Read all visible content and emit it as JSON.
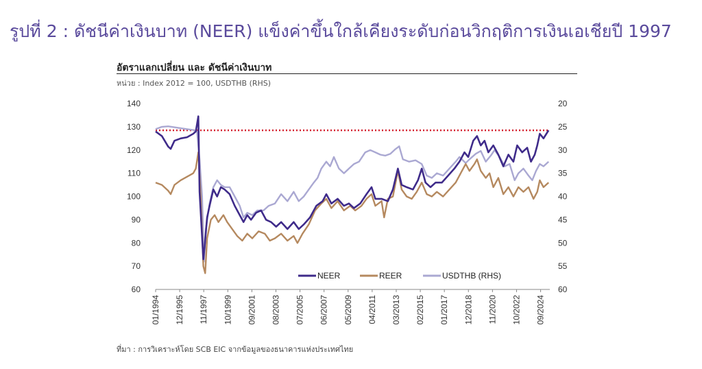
{
  "page": {
    "title": "รูปที่ 2 : ดัชนีค่าเงินบาท (NEER) แข็งค่าขึ้นใกล้เคียงระดับก่อนวิกฤติการเงินเอเชียปี 1997"
  },
  "chart": {
    "title": "อัตราแลกเปลี่ยน และ ดัชนีค่าเงินบาท",
    "unit": "หน่วย : Index 2012 = 100, USDTHB (RHS)",
    "source": "ที่มา : การวิเคราะห์โดย SCB EIC จากข้อมูลของธนาคารแห่งประเทศไทย"
  },
  "colors": {
    "neer": "#3f2b8a",
    "reer": "#b5895f",
    "usdthb": "#aaa8d2",
    "reference": "#d4202f"
  },
  "chart_data": {
    "type": "line",
    "x_ticks": [
      "01/1994",
      "12/1995",
      "11/1997",
      "10/1999",
      "09/2001",
      "08/2003",
      "07/2005",
      "06/2007",
      "05/2009",
      "04/2011",
      "03/2013",
      "02/2015",
      "01/2017",
      "12/2018",
      "11/2020",
      "10/2022",
      "09/2024"
    ],
    "ylim": [
      60,
      140
    ],
    "y_ticks": [
      140,
      130,
      120,
      110,
      100,
      90,
      80,
      70,
      60
    ],
    "y2lim": [
      20,
      60
    ],
    "y2_ticks": [
      20,
      25,
      30,
      35,
      40,
      45,
      50,
      55,
      60
    ],
    "y2_inverted": true,
    "reference_line": 128.5,
    "legend_position": "bottom-center",
    "series": [
      {
        "name": "NEER",
        "color_key": "neer",
        "axis": "left",
        "points": [
          [
            1994.0,
            128.0
          ],
          [
            1994.5,
            126.0
          ],
          [
            1995.0,
            121.5
          ],
          [
            1995.2,
            120.5
          ],
          [
            1995.5,
            124.0
          ],
          [
            1996.0,
            125.0
          ],
          [
            1996.5,
            125.5
          ],
          [
            1997.0,
            127.0
          ],
          [
            1997.2,
            128.0
          ],
          [
            1997.4,
            134.5
          ],
          [
            1997.5,
            102.0
          ],
          [
            1997.8,
            73.0
          ],
          [
            1997.9,
            78.0
          ],
          [
            1998.1,
            91.0
          ],
          [
            1998.3,
            96.0
          ],
          [
            1998.6,
            103.0
          ],
          [
            1998.9,
            100.0
          ],
          [
            1999.2,
            104.0
          ],
          [
            1999.5,
            103.0
          ],
          [
            1999.9,
            101.0
          ],
          [
            2000.3,
            96.0
          ],
          [
            2000.7,
            92.0
          ],
          [
            2001.0,
            89.0
          ],
          [
            2001.3,
            92.0
          ],
          [
            2001.6,
            90.0
          ],
          [
            2002.0,
            93.0
          ],
          [
            2002.4,
            94.0
          ],
          [
            2002.8,
            90.0
          ],
          [
            2003.2,
            89.0
          ],
          [
            2003.6,
            87.0
          ],
          [
            2004.0,
            89.0
          ],
          [
            2004.5,
            86.0
          ],
          [
            2005.0,
            89.0
          ],
          [
            2005.4,
            86.0
          ],
          [
            2005.8,
            88.0
          ],
          [
            2006.3,
            91.0
          ],
          [
            2006.8,
            96.0
          ],
          [
            2007.3,
            98.0
          ],
          [
            2007.6,
            101.0
          ],
          [
            2008.0,
            97.0
          ],
          [
            2008.5,
            99.0
          ],
          [
            2009.0,
            96.0
          ],
          [
            2009.4,
            97.0
          ],
          [
            2009.8,
            95.0
          ],
          [
            2010.3,
            97.0
          ],
          [
            2010.8,
            101.0
          ],
          [
            2011.2,
            104.0
          ],
          [
            2011.5,
            99.0
          ],
          [
            2012.0,
            99.0
          ],
          [
            2012.5,
            98.0
          ],
          [
            2012.9,
            103.0
          ],
          [
            2013.3,
            112.0
          ],
          [
            2013.6,
            105.0
          ],
          [
            2014.0,
            104.0
          ],
          [
            2014.5,
            103.0
          ],
          [
            2014.9,
            107.0
          ],
          [
            2015.2,
            112.0
          ],
          [
            2015.5,
            106.0
          ],
          [
            2015.9,
            104.0
          ],
          [
            2016.3,
            106.0
          ],
          [
            2016.8,
            106.0
          ],
          [
            2017.3,
            109.0
          ],
          [
            2017.8,
            112.0
          ],
          [
            2018.2,
            115.0
          ],
          [
            2018.6,
            119.0
          ],
          [
            2018.9,
            117.0
          ],
          [
            2019.3,
            124.0
          ],
          [
            2019.6,
            126.0
          ],
          [
            2019.9,
            122.0
          ],
          [
            2020.2,
            124.0
          ],
          [
            2020.5,
            119.0
          ],
          [
            2020.9,
            122.0
          ],
          [
            2021.3,
            118.0
          ],
          [
            2021.7,
            113.0
          ],
          [
            2022.1,
            118.0
          ],
          [
            2022.5,
            115.0
          ],
          [
            2022.8,
            122.0
          ],
          [
            2023.2,
            119.0
          ],
          [
            2023.6,
            121.0
          ],
          [
            2023.9,
            115.0
          ],
          [
            2024.2,
            118.0
          ],
          [
            2024.4,
            122.0
          ],
          [
            2024.6,
            127.0
          ],
          [
            2024.9,
            125.0
          ],
          [
            2025.3,
            128.5
          ]
        ]
      },
      {
        "name": "REER",
        "color_key": "reer",
        "axis": "left",
        "points": [
          [
            1994.0,
            106.0
          ],
          [
            1994.5,
            105.0
          ],
          [
            1995.0,
            102.5
          ],
          [
            1995.2,
            101.0
          ],
          [
            1995.5,
            105.0
          ],
          [
            1996.0,
            107.0
          ],
          [
            1996.5,
            108.5
          ],
          [
            1997.0,
            110.0
          ],
          [
            1997.2,
            112.0
          ],
          [
            1997.4,
            119.0
          ],
          [
            1997.6,
            99.0
          ],
          [
            1997.8,
            70.0
          ],
          [
            1997.95,
            67.0
          ],
          [
            1998.1,
            82.0
          ],
          [
            1998.4,
            90.0
          ],
          [
            1998.7,
            92.0
          ],
          [
            1999.0,
            89.0
          ],
          [
            1999.4,
            92.0
          ],
          [
            1999.7,
            89.0
          ],
          [
            2000.1,
            86.0
          ],
          [
            2000.5,
            83.0
          ],
          [
            2000.9,
            81.0
          ],
          [
            2001.3,
            84.0
          ],
          [
            2001.7,
            82.0
          ],
          [
            2002.2,
            85.0
          ],
          [
            2002.7,
            84.0
          ],
          [
            2003.1,
            81.0
          ],
          [
            2003.5,
            82.0
          ],
          [
            2004.0,
            84.0
          ],
          [
            2004.5,
            81.0
          ],
          [
            2005.0,
            83.0
          ],
          [
            2005.3,
            80.0
          ],
          [
            2005.7,
            84.0
          ],
          [
            2006.2,
            88.0
          ],
          [
            2006.7,
            94.0
          ],
          [
            2007.2,
            97.0
          ],
          [
            2007.6,
            99.0
          ],
          [
            2008.0,
            95.0
          ],
          [
            2008.5,
            98.0
          ],
          [
            2009.0,
            94.0
          ],
          [
            2009.5,
            96.0
          ],
          [
            2009.9,
            94.0
          ],
          [
            2010.4,
            96.0
          ],
          [
            2010.8,
            99.0
          ],
          [
            2011.2,
            101.0
          ],
          [
            2011.5,
            96.0
          ],
          [
            2012.0,
            98.0
          ],
          [
            2012.2,
            91.0
          ],
          [
            2012.5,
            99.0
          ],
          [
            2012.9,
            100.0
          ],
          [
            2013.3,
            111.0
          ],
          [
            2013.6,
            103.0
          ],
          [
            2014.0,
            100.0
          ],
          [
            2014.4,
            99.0
          ],
          [
            2014.8,
            102.0
          ],
          [
            2015.2,
            106.0
          ],
          [
            2015.6,
            101.0
          ],
          [
            2016.0,
            100.0
          ],
          [
            2016.4,
            102.0
          ],
          [
            2016.9,
            100.0
          ],
          [
            2017.4,
            103.0
          ],
          [
            2017.9,
            106.0
          ],
          [
            2018.3,
            110.0
          ],
          [
            2018.7,
            114.0
          ],
          [
            2019.0,
            111.0
          ],
          [
            2019.4,
            114.0
          ],
          [
            2019.6,
            116.0
          ],
          [
            2019.9,
            111.0
          ],
          [
            2020.3,
            108.0
          ],
          [
            2020.6,
            110.0
          ],
          [
            2020.9,
            104.0
          ],
          [
            2021.3,
            108.0
          ],
          [
            2021.7,
            101.0
          ],
          [
            2022.1,
            104.0
          ],
          [
            2022.5,
            100.0
          ],
          [
            2022.9,
            104.0
          ],
          [
            2023.3,
            102.0
          ],
          [
            2023.7,
            104.0
          ],
          [
            2024.1,
            99.0
          ],
          [
            2024.4,
            102.0
          ],
          [
            2024.6,
            107.0
          ],
          [
            2024.9,
            104.0
          ],
          [
            2025.3,
            106.0
          ]
        ]
      },
      {
        "name": "USDTHB (RHS)",
        "color_key": "usdthb",
        "axis": "right",
        "points": [
          [
            1994.0,
            25.5
          ],
          [
            1994.5,
            25.0
          ],
          [
            1995.0,
            24.9
          ],
          [
            1995.5,
            25.1
          ],
          [
            1996.0,
            25.3
          ],
          [
            1996.5,
            25.5
          ],
          [
            1997.0,
            25.7
          ],
          [
            1997.3,
            26.0
          ],
          [
            1997.5,
            32.0
          ],
          [
            1997.7,
            40.0
          ],
          [
            1997.85,
            54.0
          ],
          [
            1998.0,
            47.0
          ],
          [
            1998.3,
            41.5
          ],
          [
            1998.6,
            38.0
          ],
          [
            1998.9,
            36.5
          ],
          [
            1999.2,
            37.5
          ],
          [
            1999.5,
            38.0
          ],
          [
            1999.9,
            38.0
          ],
          [
            2000.3,
            40.0
          ],
          [
            2000.7,
            42.0
          ],
          [
            2001.0,
            44.5
          ],
          [
            2001.3,
            43.5
          ],
          [
            2001.7,
            44.0
          ],
          [
            2002.1,
            43.0
          ],
          [
            2002.6,
            43.0
          ],
          [
            2003.0,
            42.0
          ],
          [
            2003.5,
            41.5
          ],
          [
            2004.0,
            39.5
          ],
          [
            2004.5,
            41.0
          ],
          [
            2005.0,
            39.0
          ],
          [
            2005.4,
            41.0
          ],
          [
            2005.8,
            40.0
          ],
          [
            2006.2,
            38.5
          ],
          [
            2006.6,
            37.0
          ],
          [
            2006.9,
            36.0
          ],
          [
            2007.2,
            34.0
          ],
          [
            2007.6,
            32.5
          ],
          [
            2007.9,
            33.5
          ],
          [
            2008.2,
            31.5
          ],
          [
            2008.6,
            34.0
          ],
          [
            2009.0,
            35.0
          ],
          [
            2009.4,
            34.0
          ],
          [
            2009.8,
            33.0
          ],
          [
            2010.2,
            32.5
          ],
          [
            2010.7,
            30.5
          ],
          [
            2011.1,
            30.0
          ],
          [
            2011.5,
            30.5
          ],
          [
            2011.9,
            31.0
          ],
          [
            2012.3,
            31.2
          ],
          [
            2012.7,
            30.8
          ],
          [
            2013.1,
            29.8
          ],
          [
            2013.4,
            29.2
          ],
          [
            2013.7,
            32.0
          ],
          [
            2014.2,
            32.5
          ],
          [
            2014.7,
            32.2
          ],
          [
            2015.2,
            33.0
          ],
          [
            2015.6,
            35.5
          ],
          [
            2016.0,
            36.0
          ],
          [
            2016.4,
            35.0
          ],
          [
            2016.9,
            35.5
          ],
          [
            2017.4,
            34.0
          ],
          [
            2017.9,
            32.5
          ],
          [
            2018.2,
            31.5
          ],
          [
            2018.7,
            32.8
          ],
          [
            2019.0,
            32.0
          ],
          [
            2019.5,
            30.8
          ],
          [
            2019.9,
            30.2
          ],
          [
            2020.3,
            32.5
          ],
          [
            2020.7,
            31.2
          ],
          [
            2021.0,
            30.0
          ],
          [
            2021.4,
            31.5
          ],
          [
            2021.8,
            33.5
          ],
          [
            2022.2,
            33.0
          ],
          [
            2022.6,
            36.5
          ],
          [
            2022.9,
            35.0
          ],
          [
            2023.3,
            34.0
          ],
          [
            2023.7,
            35.5
          ],
          [
            2024.0,
            36.5
          ],
          [
            2024.3,
            34.5
          ],
          [
            2024.6,
            33.0
          ],
          [
            2024.9,
            33.5
          ],
          [
            2025.3,
            32.5
          ]
        ]
      }
    ]
  }
}
